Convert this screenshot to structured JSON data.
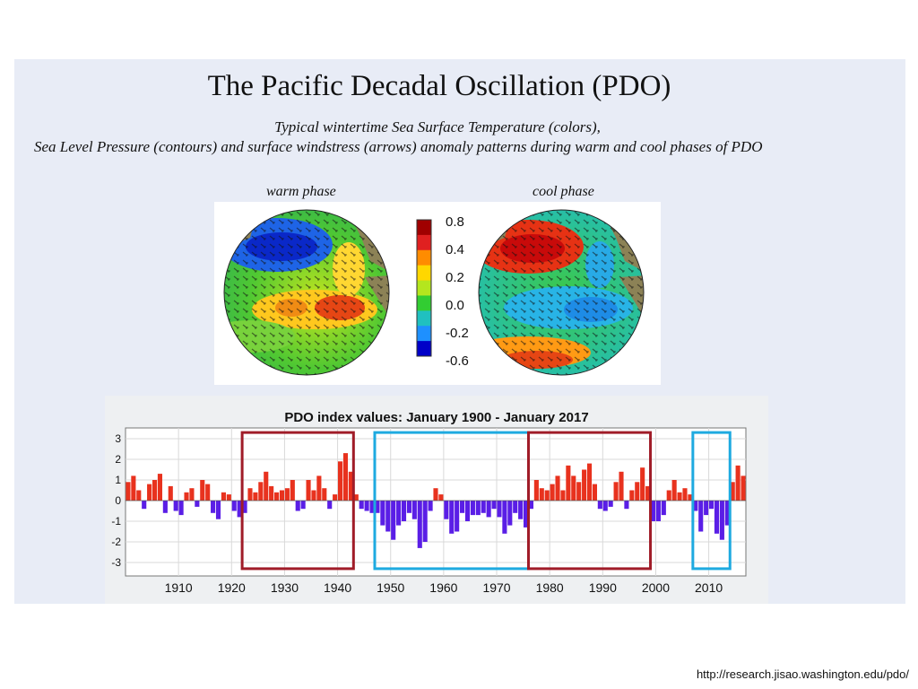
{
  "header": {
    "title": "The Pacific Decadal Oscillation (PDO)",
    "subtitle_line1": "Typical wintertime Sea Surface Temperature (colors),",
    "subtitle_line2": "Sea Level Pressure (contours) and surface windstress (arrows) anomaly patterns during warm and cool phases of PDO"
  },
  "maps": {
    "warm_label": "warm phase",
    "cool_label": "cool phase",
    "colorbar": {
      "ticks": [
        "0.8",
        "0.4",
        "0.2",
        "0.0",
        "-0.2",
        "-0.6"
      ],
      "colors": [
        "#a00000",
        "#e02020",
        "#ff8c00",
        "#ffd700",
        "#b4e61e",
        "#32cd32",
        "#20c0c0",
        "#1e90ff",
        "#0000c8"
      ]
    }
  },
  "chart_data": {
    "type": "bar",
    "title": "PDO index values: January 1900 - January 2017",
    "xlabel": "",
    "ylabel": "",
    "xlim": [
      1900,
      2017
    ],
    "ylim": [
      -3.5,
      3.5
    ],
    "xticks": [
      1910,
      1920,
      1930,
      1940,
      1950,
      1960,
      1970,
      1980,
      1990,
      2000,
      2010
    ],
    "yticks": [
      3,
      2,
      1,
      0,
      -1,
      -2,
      -3
    ],
    "grid": true,
    "positive_color": "#e8321e",
    "negative_color": "#5a1ee6",
    "highlight_boxes": [
      {
        "phase": "warm",
        "start": 1922,
        "end": 1943,
        "color": "#a01c28"
      },
      {
        "phase": "cool",
        "start": 1947,
        "end": 1976,
        "color": "#1eaae0"
      },
      {
        "phase": "warm",
        "start": 1976,
        "end": 1999,
        "color": "#a01c28"
      },
      {
        "phase": "cool",
        "start": 2007,
        "end": 2014,
        "color": "#1eaae0"
      }
    ],
    "annual_values": [
      {
        "year": 1900,
        "value": 0.9
      },
      {
        "year": 1901,
        "value": 1.2
      },
      {
        "year": 1902,
        "value": 0.5
      },
      {
        "year": 1903,
        "value": -0.4
      },
      {
        "year": 1904,
        "value": 0.8
      },
      {
        "year": 1905,
        "value": 1.0
      },
      {
        "year": 1906,
        "value": 1.3
      },
      {
        "year": 1907,
        "value": -0.6
      },
      {
        "year": 1908,
        "value": 0.7
      },
      {
        "year": 1909,
        "value": -0.5
      },
      {
        "year": 1910,
        "value": -0.7
      },
      {
        "year": 1911,
        "value": 0.4
      },
      {
        "year": 1912,
        "value": 0.6
      },
      {
        "year": 1913,
        "value": -0.3
      },
      {
        "year": 1914,
        "value": 1.0
      },
      {
        "year": 1915,
        "value": 0.8
      },
      {
        "year": 1916,
        "value": -0.6
      },
      {
        "year": 1917,
        "value": -0.9
      },
      {
        "year": 1918,
        "value": 0.4
      },
      {
        "year": 1919,
        "value": 0.3
      },
      {
        "year": 1920,
        "value": -0.5
      },
      {
        "year": 1921,
        "value": -0.8
      },
      {
        "year": 1922,
        "value": -0.6
      },
      {
        "year": 1923,
        "value": 0.6
      },
      {
        "year": 1924,
        "value": 0.4
      },
      {
        "year": 1925,
        "value": 0.9
      },
      {
        "year": 1926,
        "value": 1.4
      },
      {
        "year": 1927,
        "value": 0.7
      },
      {
        "year": 1928,
        "value": 0.4
      },
      {
        "year": 1929,
        "value": 0.5
      },
      {
        "year": 1930,
        "value": 0.6
      },
      {
        "year": 1931,
        "value": 1.0
      },
      {
        "year": 1932,
        "value": -0.5
      },
      {
        "year": 1933,
        "value": -0.4
      },
      {
        "year": 1934,
        "value": 1.0
      },
      {
        "year": 1935,
        "value": 0.5
      },
      {
        "year": 1936,
        "value": 1.2
      },
      {
        "year": 1937,
        "value": 0.6
      },
      {
        "year": 1938,
        "value": -0.4
      },
      {
        "year": 1939,
        "value": 0.3
      },
      {
        "year": 1940,
        "value": 1.9
      },
      {
        "year": 1941,
        "value": 2.3
      },
      {
        "year": 1942,
        "value": 1.4
      },
      {
        "year": 1943,
        "value": 0.3
      },
      {
        "year": 1944,
        "value": -0.4
      },
      {
        "year": 1945,
        "value": -0.5
      },
      {
        "year": 1946,
        "value": -0.6
      },
      {
        "year": 1947,
        "value": -0.6
      },
      {
        "year": 1948,
        "value": -1.2
      },
      {
        "year": 1949,
        "value": -1.5
      },
      {
        "year": 1950,
        "value": -1.9
      },
      {
        "year": 1951,
        "value": -1.2
      },
      {
        "year": 1952,
        "value": -1.0
      },
      {
        "year": 1953,
        "value": -0.6
      },
      {
        "year": 1954,
        "value": -0.9
      },
      {
        "year": 1955,
        "value": -2.3
      },
      {
        "year": 1956,
        "value": -2.0
      },
      {
        "year": 1957,
        "value": -0.5
      },
      {
        "year": 1958,
        "value": 0.6
      },
      {
        "year": 1959,
        "value": 0.3
      },
      {
        "year": 1960,
        "value": -0.9
      },
      {
        "year": 1961,
        "value": -1.6
      },
      {
        "year": 1962,
        "value": -1.5
      },
      {
        "year": 1963,
        "value": -0.6
      },
      {
        "year": 1964,
        "value": -1.0
      },
      {
        "year": 1965,
        "value": -0.7
      },
      {
        "year": 1966,
        "value": -0.7
      },
      {
        "year": 1967,
        "value": -0.6
      },
      {
        "year": 1968,
        "value": -0.8
      },
      {
        "year": 1969,
        "value": -0.4
      },
      {
        "year": 1970,
        "value": -0.8
      },
      {
        "year": 1971,
        "value": -1.6
      },
      {
        "year": 1972,
        "value": -1.2
      },
      {
        "year": 1973,
        "value": -0.6
      },
      {
        "year": 1974,
        "value": -0.9
      },
      {
        "year": 1975,
        "value": -1.3
      },
      {
        "year": 1976,
        "value": -0.4
      },
      {
        "year": 1977,
        "value": 1.0
      },
      {
        "year": 1978,
        "value": 0.6
      },
      {
        "year": 1979,
        "value": 0.5
      },
      {
        "year": 1980,
        "value": 0.8
      },
      {
        "year": 1981,
        "value": 1.2
      },
      {
        "year": 1982,
        "value": 0.5
      },
      {
        "year": 1983,
        "value": 1.7
      },
      {
        "year": 1984,
        "value": 1.2
      },
      {
        "year": 1985,
        "value": 0.9
      },
      {
        "year": 1986,
        "value": 1.5
      },
      {
        "year": 1987,
        "value": 1.8
      },
      {
        "year": 1988,
        "value": 0.8
      },
      {
        "year": 1989,
        "value": -0.4
      },
      {
        "year": 1990,
        "value": -0.5
      },
      {
        "year": 1991,
        "value": -0.3
      },
      {
        "year": 1992,
        "value": 0.9
      },
      {
        "year": 1993,
        "value": 1.4
      },
      {
        "year": 1994,
        "value": -0.4
      },
      {
        "year": 1995,
        "value": 0.5
      },
      {
        "year": 1996,
        "value": 0.9
      },
      {
        "year": 1997,
        "value": 1.6
      },
      {
        "year": 1998,
        "value": 0.7
      },
      {
        "year": 1999,
        "value": -1.0
      },
      {
        "year": 2000,
        "value": -1.0
      },
      {
        "year": 2001,
        "value": -0.7
      },
      {
        "year": 2002,
        "value": 0.5
      },
      {
        "year": 2003,
        "value": 1.0
      },
      {
        "year": 2004,
        "value": 0.4
      },
      {
        "year": 2005,
        "value": 0.6
      },
      {
        "year": 2006,
        "value": 0.3
      },
      {
        "year": 2007,
        "value": -0.5
      },
      {
        "year": 2008,
        "value": -1.5
      },
      {
        "year": 2009,
        "value": -0.7
      },
      {
        "year": 2010,
        "value": -0.4
      },
      {
        "year": 2011,
        "value": -1.6
      },
      {
        "year": 2012,
        "value": -1.9
      },
      {
        "year": 2013,
        "value": -1.2
      },
      {
        "year": 2014,
        "value": 0.9
      },
      {
        "year": 2015,
        "value": 1.7
      },
      {
        "year": 2016,
        "value": 1.2
      }
    ]
  },
  "footer": {
    "credit": "http://research.jisao.washington.edu/pdo/"
  }
}
